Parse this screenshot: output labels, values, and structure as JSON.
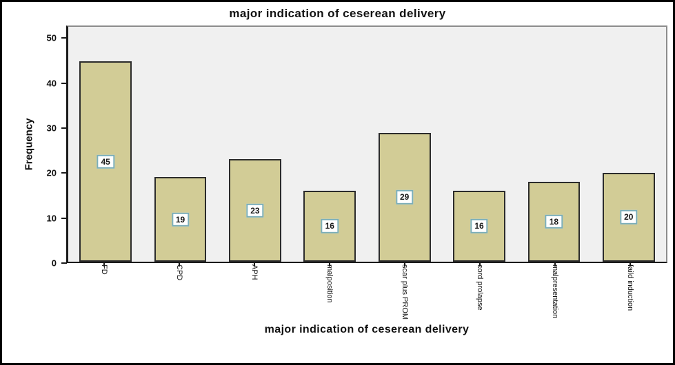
{
  "chart_data": {
    "type": "bar",
    "title": "major indication of ceserean delivery",
    "xlabel": "major indication of ceserean delivery",
    "ylabel": "Frequency",
    "categories": [
      "FD",
      "CPD",
      "APH",
      "malposition",
      "scar plus PROM",
      "cord prolapse",
      "malpresentation",
      "faild induction"
    ],
    "values": [
      45,
      19,
      23,
      16,
      29,
      16,
      18,
      20
    ],
    "yticks": [
      0,
      10,
      20,
      30,
      40,
      50
    ],
    "ylim": [
      0,
      52.8
    ],
    "grid": false,
    "legend_position": "none",
    "bar_value_labels_shown": true,
    "colors": {
      "plot_bg": "#F0F0F0",
      "bar_fill": "#D2CC96",
      "bar_border": "#2B2B2B",
      "value_box_bg": "#FFFFFF",
      "value_box_border": "#7BAEB9",
      "axis_color": "#1A1A1A",
      "frame_border": "#8C8C8C",
      "outer_border": "#000000"
    }
  }
}
